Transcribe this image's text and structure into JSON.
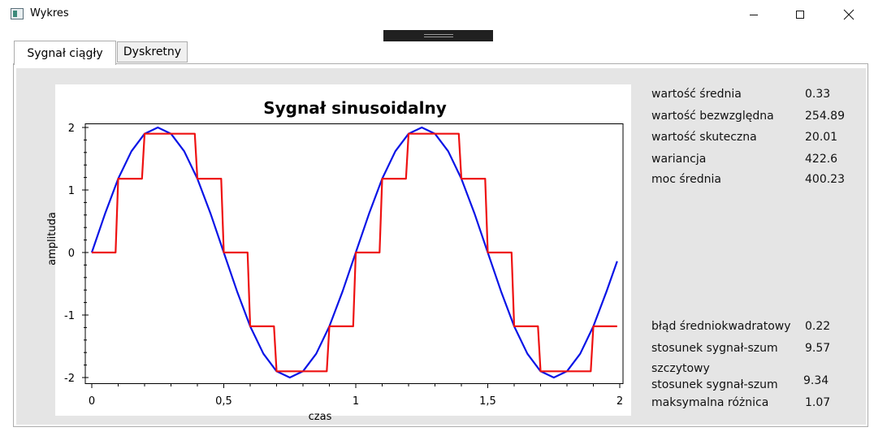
{
  "window": {
    "title": "Wykres",
    "minimize_icon": "minimize-icon",
    "maximize_icon": "maximize-icon",
    "close_icon": "close-icon"
  },
  "tabs": [
    {
      "label": "Sygnał ciągły",
      "active": true
    },
    {
      "label": "Dyskretny",
      "active": false
    }
  ],
  "colors": {
    "continuous_line": "#0a14e6",
    "discrete_line": "#ee1111",
    "panel_bg": "#e5e5e5"
  },
  "chart_data": {
    "type": "line",
    "title": "Sygnał sinusoidalny",
    "xlabel": "czas",
    "ylabel": "amplituda",
    "xlim": [
      0,
      2
    ],
    "ylim": [
      -2,
      2
    ],
    "xticks": [
      0,
      0.5,
      1,
      1.5,
      2
    ],
    "xtick_labels": [
      "0",
      "0,5",
      "1",
      "1,5",
      "2"
    ],
    "yticks": [
      2,
      1,
      0,
      -1,
      -2
    ],
    "ytick_labels": [
      "2",
      "1",
      "0",
      "-1",
      "-2"
    ],
    "series": [
      {
        "kind": "continuous",
        "color": "#0a14e6",
        "x": [
          0,
          0.05,
          0.1,
          0.15,
          0.2,
          0.25,
          0.3,
          0.35,
          0.4,
          0.45,
          0.5,
          0.55,
          0.6,
          0.65,
          0.7,
          0.75,
          0.8,
          0.85,
          0.9,
          0.95,
          1.0,
          1.05,
          1.1,
          1.15,
          1.2,
          1.25,
          1.3,
          1.35,
          1.4,
          1.45,
          1.5,
          1.55,
          1.6,
          1.65,
          1.7,
          1.75,
          1.8,
          1.85,
          1.9,
          1.95,
          1.99
        ],
        "y": [
          0,
          0.62,
          1.18,
          1.62,
          1.9,
          2.0,
          1.9,
          1.62,
          1.18,
          0.62,
          0,
          -0.62,
          -1.18,
          -1.62,
          -1.9,
          -2.0,
          -1.9,
          -1.62,
          -1.18,
          -0.62,
          0,
          0.62,
          1.18,
          1.62,
          1.9,
          2.0,
          1.9,
          1.62,
          1.18,
          0.62,
          0,
          -0.62,
          -1.18,
          -1.62,
          -1.9,
          -2.0,
          -1.9,
          -1.62,
          -1.18,
          -0.62,
          -0.14
        ]
      },
      {
        "kind": "discrete-step",
        "color": "#ee1111",
        "x": [
          0,
          0.09,
          0.1,
          0.19,
          0.2,
          0.39,
          0.4,
          0.49,
          0.5,
          0.59,
          0.6,
          0.69,
          0.7,
          0.89,
          0.9,
          0.99,
          1.0,
          1.09,
          1.1,
          1.19,
          1.2,
          1.39,
          1.4,
          1.49,
          1.5,
          1.59,
          1.6,
          1.69,
          1.7,
          1.89,
          1.9,
          1.99
        ],
        "y": [
          0,
          0,
          1.18,
          1.18,
          1.9,
          1.9,
          1.18,
          1.18,
          0,
          0,
          -1.18,
          -1.18,
          -1.9,
          -1.9,
          -1.18,
          -1.18,
          0,
          0,
          1.18,
          1.18,
          1.9,
          1.9,
          1.18,
          1.18,
          0,
          0,
          -1.18,
          -1.18,
          -1.9,
          -1.9,
          -1.18,
          -1.18
        ]
      }
    ]
  },
  "stats_top": [
    {
      "label": "wartość średnia",
      "value": "0.33"
    },
    {
      "label": "wartość bezwzględna",
      "value": "254.89"
    },
    {
      "label": "wartość skuteczna",
      "value": "20.01"
    },
    {
      "label": "wariancja",
      "value": "422.6"
    },
    {
      "label": "moc średnia",
      "value": "400.23"
    }
  ],
  "stats_bottom": [
    {
      "label": "błąd średniokwadratowy",
      "value": "0.22"
    },
    {
      "label": "stosunek sygnał-szum",
      "value": "9.57"
    },
    {
      "label": "szczytowy",
      "label2": "stosunek sygnał-szum",
      "value": "9.34"
    },
    {
      "label": "maksymalna różnica",
      "value": "1.07"
    }
  ]
}
